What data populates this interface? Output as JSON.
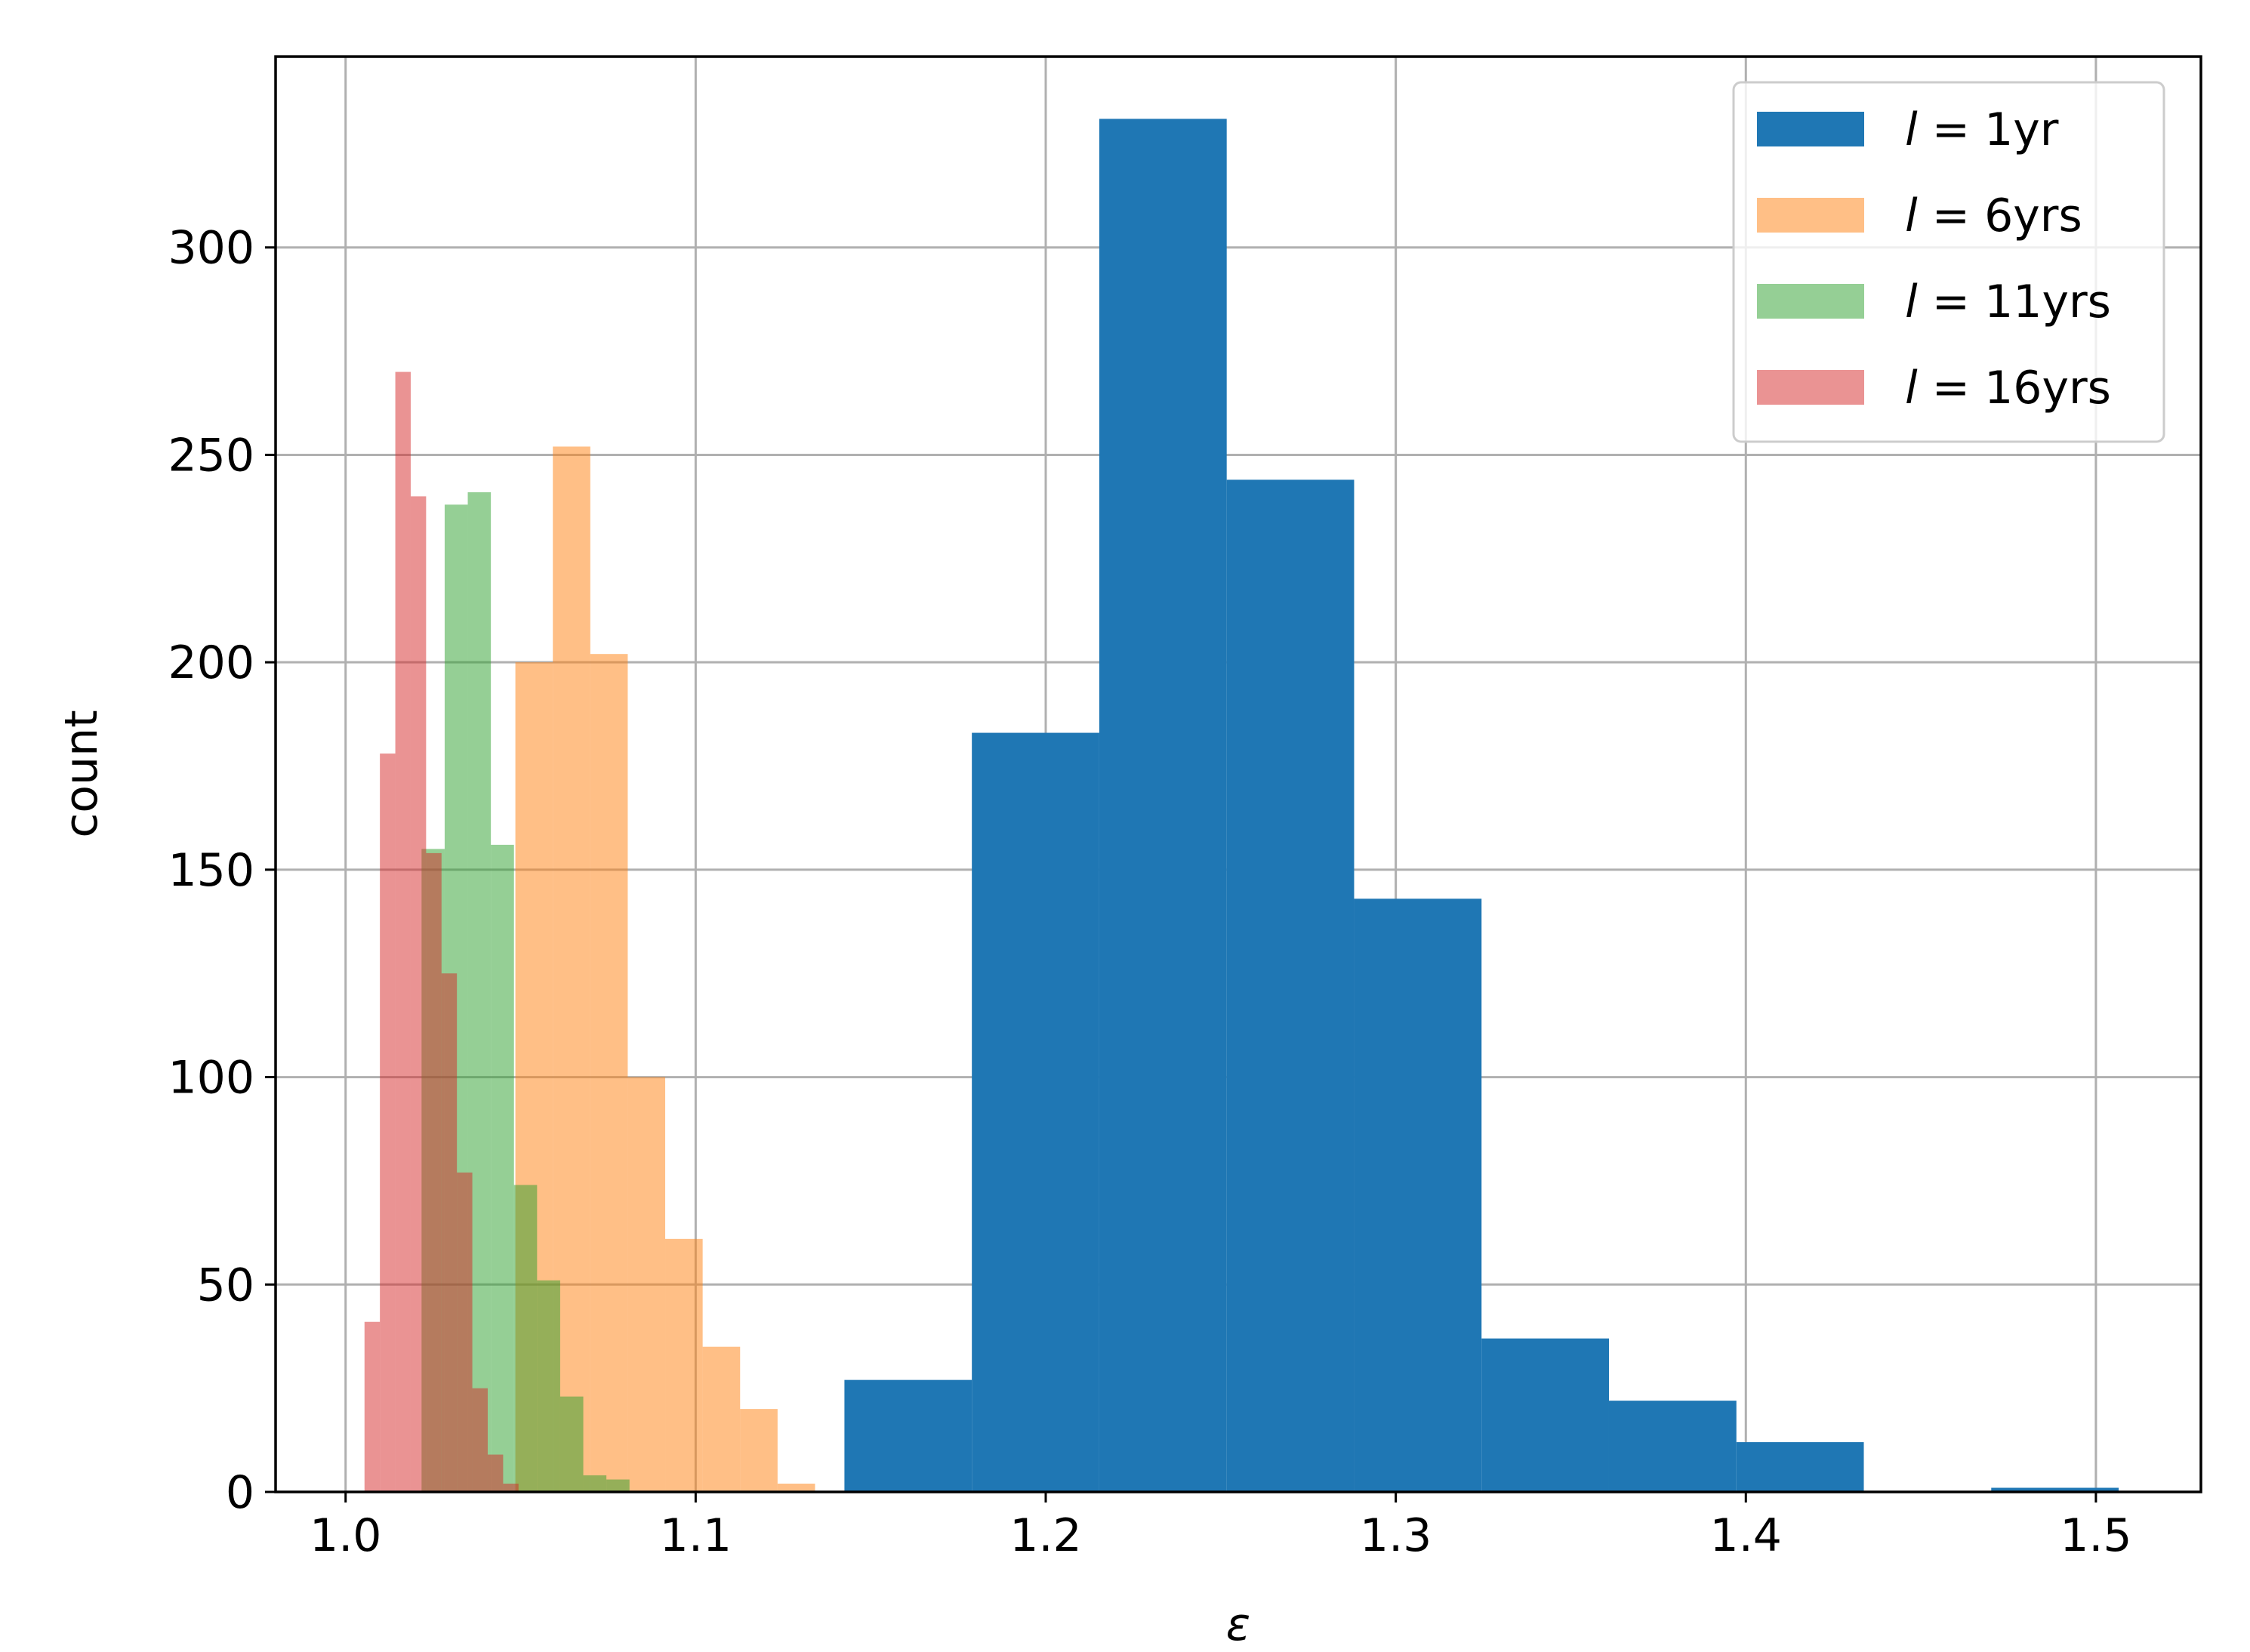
{
  "chart_data": {
    "type": "bar",
    "title": "",
    "xlabel": "ε",
    "ylabel": "count",
    "xlim": [
      0.98,
      1.53
    ],
    "ylim": [
      0,
      346
    ],
    "x_ticks": [
      1.0,
      1.1,
      1.2,
      1.3,
      1.4,
      1.5
    ],
    "x_tick_labels": [
      "1.0",
      "1.1",
      "1.2",
      "1.3",
      "1.4",
      "1.5"
    ],
    "y_ticks": [
      0,
      50,
      100,
      150,
      200,
      250,
      300
    ],
    "y_tick_labels": [
      "0",
      "50",
      "100",
      "150",
      "200",
      "250",
      "300"
    ],
    "grid": true,
    "legend_position": "top-right",
    "series": [
      {
        "name": "l = 1yr",
        "legend_italic": "l",
        "legend_rest": " = 1yr",
        "color": "#1f77b4",
        "opacity": 1.0,
        "bin_edges": [
          1.1425,
          1.1789,
          1.2153,
          1.2517,
          1.2881,
          1.3245,
          1.3609,
          1.3973,
          1.4337,
          1.4701,
          1.5065
        ],
        "counts": [
          27,
          183,
          331,
          244,
          143,
          37,
          22,
          12,
          0,
          1
        ]
      },
      {
        "name": "l = 6yrs",
        "legend_italic": "l",
        "legend_rest": " = 6yrs",
        "color": "#ff7f0e",
        "opacity": 0.5,
        "bin_edges": [
          1.0485,
          1.0592,
          1.0699,
          1.0806,
          1.0913,
          1.102,
          1.1127,
          1.1234,
          1.1341
        ],
        "counts": [
          200,
          252,
          202,
          100,
          61,
          35,
          20,
          2
        ]
      },
      {
        "name": "l = 11yrs",
        "legend_italic": "l",
        "legend_rest": " = 11yrs",
        "color": "#2ca02c",
        "opacity": 0.5,
        "bin_edges": [
          1.0217,
          1.0283,
          1.0349,
          1.0415,
          1.0481,
          1.0547,
          1.0613,
          1.0679,
          1.0745,
          1.0811
        ],
        "counts": [
          155,
          238,
          241,
          156,
          74,
          51,
          23,
          4,
          3
        ]
      },
      {
        "name": "l = 16yrs",
        "legend_italic": "l",
        "legend_rest": " = 16yrs",
        "color": "#d62728",
        "opacity": 0.5,
        "bin_edges": [
          1.0054,
          1.0098,
          1.0142,
          1.0186,
          1.023,
          1.0274,
          1.0318,
          1.0362,
          1.0406,
          1.045,
          1.0494
        ],
        "counts": [
          41,
          178,
          270,
          240,
          154,
          125,
          77,
          25,
          9,
          2
        ]
      }
    ]
  }
}
